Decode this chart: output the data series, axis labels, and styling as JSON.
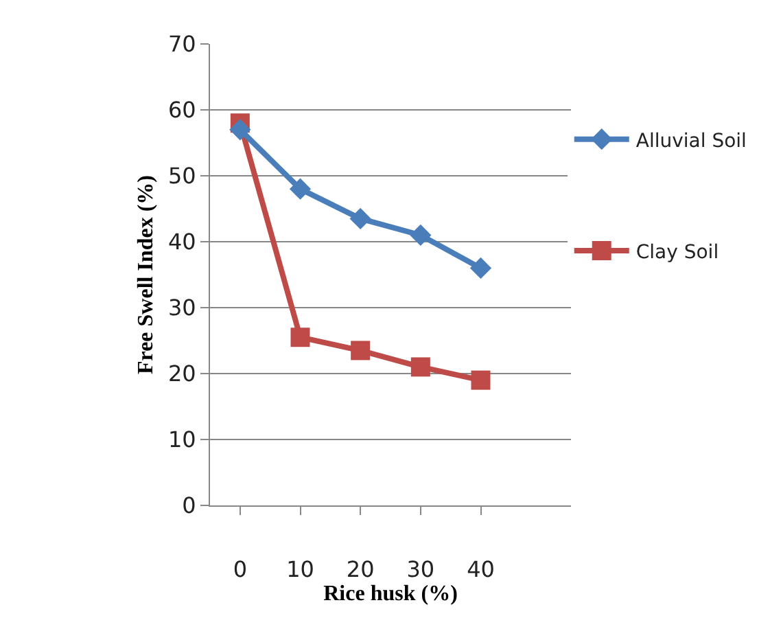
{
  "chart_data": {
    "type": "line",
    "xlabel": "Rice husk (%)",
    "ylabel": "Free Swell Index (%)",
    "categories": [
      "0",
      "10",
      "20",
      "30",
      "40",
      null
    ],
    "series": [
      {
        "name": "Alluvial Soil",
        "color": "#4a7ebb",
        "marker": "diamond",
        "values": [
          57,
          48,
          43.5,
          41,
          36,
          null
        ]
      },
      {
        "name": "Clay Soil",
        "color": "#be4b48",
        "marker": "square",
        "values": [
          58,
          25.5,
          23.5,
          21,
          19,
          null
        ]
      }
    ],
    "ylim": [
      0,
      70
    ],
    "yticks": [
      0,
      10,
      20,
      30,
      40,
      50,
      60,
      70
    ],
    "grid": "y",
    "legend": "right"
  }
}
